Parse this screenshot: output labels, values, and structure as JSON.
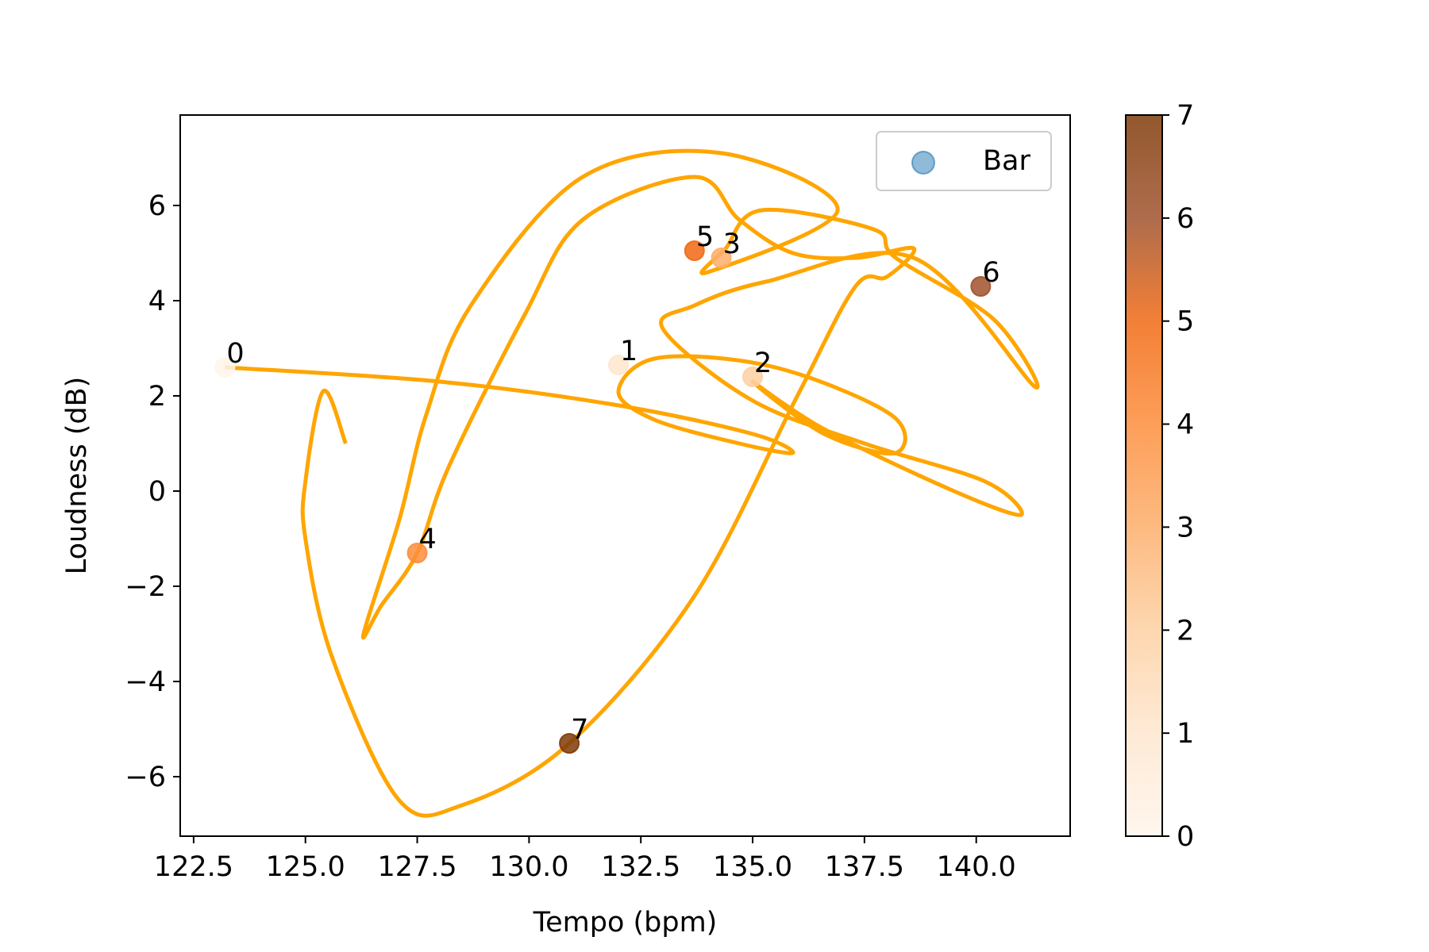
{
  "chart_data": {
    "type": "scatter",
    "title": "",
    "xlabel": "Tempo (bpm)",
    "ylabel": "Loudness (dB)",
    "xlim": [
      122.2,
      142.1
    ],
    "ylim": [
      -7.25,
      7.9
    ],
    "xticks": [
      122.5,
      125.0,
      127.5,
      130.0,
      132.5,
      135.0,
      137.5,
      140.0
    ],
    "xtick_labels": [
      "122.5",
      "125.0",
      "127.5",
      "130.0",
      "132.5",
      "135.0",
      "137.5",
      "140.0"
    ],
    "yticks": [
      -6,
      -4,
      -2,
      0,
      2,
      4,
      6
    ],
    "ytick_labels": [
      "−6",
      "−4",
      "−2",
      "0",
      "2",
      "4",
      "6"
    ],
    "grid": false,
    "legend": {
      "placement": "top-right",
      "entries": [
        {
          "label": "Bar",
          "color": "#1f77b4"
        }
      ]
    },
    "points": [
      {
        "label": "0",
        "x": 123.2,
        "y": 2.6,
        "c": 0
      },
      {
        "label": "1",
        "x": 132.0,
        "y": 2.65,
        "c": 1
      },
      {
        "label": "2",
        "x": 135.0,
        "y": 2.4,
        "c": 2
      },
      {
        "label": "3",
        "x": 134.3,
        "y": 4.9,
        "c": 3
      },
      {
        "label": "4",
        "x": 127.5,
        "y": -1.3,
        "c": 4
      },
      {
        "label": "5",
        "x": 133.7,
        "y": 5.05,
        "c": 5
      },
      {
        "label": "6",
        "x": 140.1,
        "y": 4.3,
        "c": 6
      },
      {
        "label": "7",
        "x": 130.9,
        "y": -5.3,
        "c": 7
      }
    ],
    "curve": {
      "color": "#ffa500",
      "x": [
        123.2,
        128.0,
        132.0,
        135.0,
        135.9,
        134.7,
        132.8,
        132.0,
        132.9,
        135.5,
        138.1,
        138.2,
        136.6,
        135.0,
        136.6,
        139.5,
        141.0,
        140.2,
        137.5,
        135.0,
        133.0,
        133.7,
        135.3,
        138.6,
        141.3,
        140.4,
        138.2,
        137.7,
        135.2,
        134.4,
        134.0,
        136.9,
        134.3,
        131.2,
        128.7,
        127.7,
        127.1,
        126.3,
        126.7,
        127.5,
        128.2,
        129.9,
        131.2,
        133.7,
        134.7,
        135.9,
        137.3,
        138.6,
        138.0,
        137.3,
        136.0,
        133.7,
        130.9,
        128.5,
        127.1,
        125.6,
        125.0,
        125.0,
        125.4,
        125.9
      ],
      "y": [
        2.6,
        2.3,
        1.8,
        1.2,
        0.8,
        1.0,
        1.5,
        2.1,
        2.8,
        2.6,
        1.6,
        0.8,
        1.2,
        2.3,
        1.3,
        0.0,
        -0.5,
        0.2,
        1.0,
        1.9,
        3.4,
        3.9,
        4.4,
        4.9,
        2.2,
        3.6,
        4.9,
        5.5,
        5.9,
        5.1,
        4.6,
        5.9,
        7.1,
        6.6,
        3.9,
        1.6,
        -0.6,
        -3.0,
        -2.4,
        -1.3,
        0.5,
        3.7,
        5.7,
        6.6,
        5.7,
        5.0,
        4.9,
        5.1,
        4.5,
        4.3,
        2.0,
        -2.2,
        -5.3,
        -6.6,
        -6.5,
        -3.5,
        -1.0,
        0.2,
        2.1,
        1.0
      ]
    },
    "colorbar": {
      "range": [
        0,
        7
      ],
      "ticks": [
        0,
        1,
        2,
        3,
        4,
        5,
        6,
        7
      ],
      "tick_labels": [
        "0",
        "1",
        "2",
        "3",
        "4",
        "5",
        "6",
        "7"
      ],
      "colors": [
        "#fff5eb",
        "#fee6ce",
        "#fdd0a2",
        "#fdae6b",
        "#fd8d3c",
        "#f16913",
        "#a0522d",
        "#7f3b08"
      ]
    }
  }
}
